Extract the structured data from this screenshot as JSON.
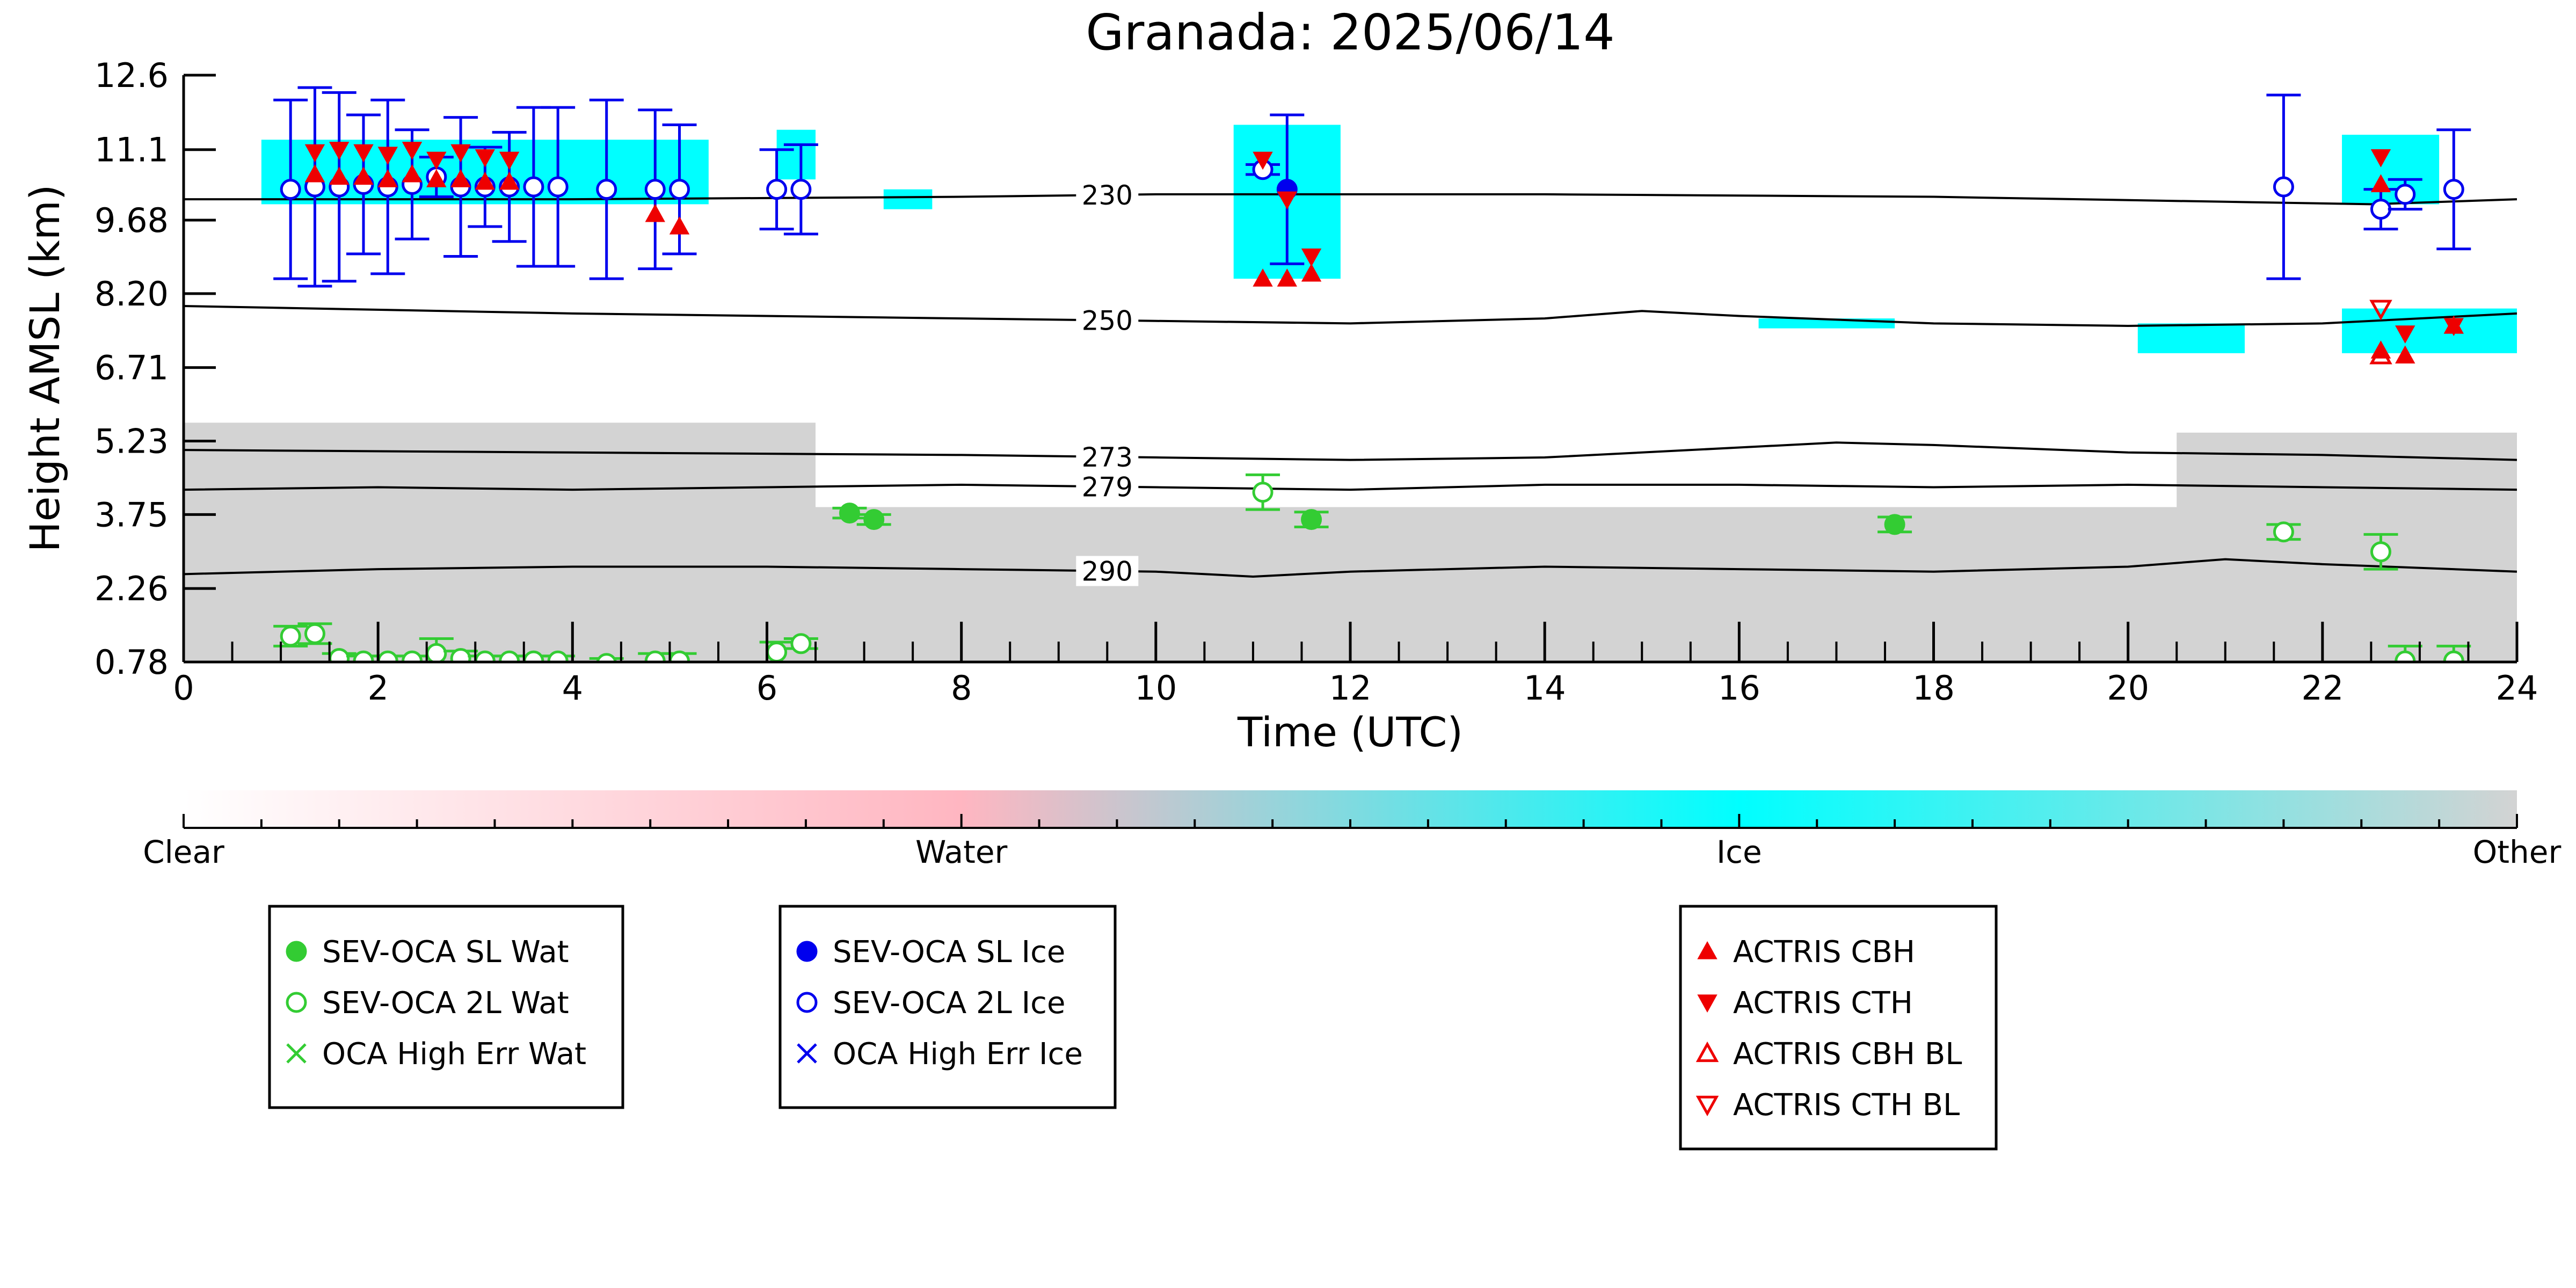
{
  "chart_data": {
    "type": "scatter",
    "title": "Granada: 2025/06/14",
    "xlabel": "Time (UTC)",
    "ylabel": "Height AMSL (km)",
    "xlim": [
      0,
      24
    ],
    "ylim": [
      0.78,
      12.6
    ],
    "x_ticks": [
      "0",
      "2",
      "4",
      "6",
      "8",
      "10",
      "12",
      "14",
      "16",
      "18",
      "20",
      "22",
      "24"
    ],
    "y_ticks": [
      "0.78",
      "2.26",
      "3.75",
      "5.23",
      "6.71",
      "8.20",
      "9.68",
      "11.1",
      "12.6"
    ],
    "grid": false,
    "colorbar": {
      "labels": [
        "Clear",
        "Water",
        "Ice",
        "Other"
      ],
      "colors": [
        "#ffffff",
        "#ffb6c1",
        "#00ffff",
        "#d3d3d3"
      ]
    },
    "background_fields": [
      {
        "name": "Other",
        "color": "#d3d3d3",
        "segments": [
          {
            "x": [
              0,
              24
            ],
            "bottom": 0.78,
            "top": 3.9
          },
          {
            "x": [
              0,
              6.5
            ],
            "bottom": 3.9,
            "top": 5.6
          },
          {
            "x": [
              20.5,
              24
            ],
            "bottom": 3.9,
            "top": 5.4
          }
        ]
      },
      {
        "name": "Ice",
        "color": "#00ffff",
        "segments": [
          {
            "x": [
              0.8,
              5.4
            ],
            "bottom": 10.0,
            "top": 11.3
          },
          {
            "x": [
              6.1,
              6.5
            ],
            "bottom": 10.5,
            "top": 11.5
          },
          {
            "x": [
              7.2,
              7.7
            ],
            "bottom": 9.9,
            "top": 10.3
          },
          {
            "x": [
              10.8,
              11.9
            ],
            "bottom": 8.5,
            "top": 11.6
          },
          {
            "x": [
              16.2,
              17.6
            ],
            "bottom": 7.5,
            "top": 7.7
          },
          {
            "x": [
              20.1,
              21.2
            ],
            "bottom": 7.0,
            "top": 7.6
          },
          {
            "x": [
              22.2,
              24.0
            ],
            "bottom": 7.0,
            "top": 7.9
          },
          {
            "x": [
              22.2,
              23.2
            ],
            "bottom": 10.0,
            "top": 11.4
          }
        ]
      }
    ],
    "contours": [
      {
        "label": "230",
        "label_x": 9.5,
        "x": [
          0,
          4,
          8,
          10,
          14,
          18,
          21,
          22.5,
          24
        ],
        "y": [
          10.1,
          10.1,
          10.15,
          10.2,
          10.2,
          10.15,
          10.05,
          10.0,
          10.1
        ]
      },
      {
        "label": "250",
        "label_x": 9.5,
        "x": [
          0,
          4,
          8,
          10,
          12,
          14,
          15,
          16,
          18,
          20,
          22,
          24
        ],
        "y": [
          7.95,
          7.8,
          7.7,
          7.65,
          7.6,
          7.7,
          7.85,
          7.75,
          7.6,
          7.55,
          7.6,
          7.8
        ]
      },
      {
        "label": "273",
        "label_x": 9.5,
        "x": [
          0,
          4,
          8,
          10,
          12,
          14,
          16,
          17,
          18,
          20,
          22,
          24
        ],
        "y": [
          5.05,
          5.0,
          4.95,
          4.9,
          4.85,
          4.9,
          5.1,
          5.2,
          5.15,
          5.0,
          4.95,
          4.85
        ]
      },
      {
        "label": "279",
        "label_x": 9.5,
        "x": [
          0,
          2,
          4,
          6,
          8,
          10,
          12,
          14,
          16,
          18,
          20,
          22,
          24
        ],
        "y": [
          4.25,
          4.3,
          4.25,
          4.3,
          4.35,
          4.3,
          4.25,
          4.35,
          4.35,
          4.3,
          4.35,
          4.3,
          4.25
        ]
      },
      {
        "label": "290",
        "label_x": 9.5,
        "x": [
          0,
          2,
          4,
          6,
          8,
          10,
          11,
          12,
          14,
          16,
          18,
          20,
          21,
          22,
          24
        ],
        "y": [
          2.55,
          2.65,
          2.7,
          2.7,
          2.65,
          2.6,
          2.5,
          2.6,
          2.7,
          2.65,
          2.6,
          2.7,
          2.85,
          2.75,
          2.6
        ]
      }
    ],
    "series": [
      {
        "name": "SEV-OCA SL Wat",
        "color": "#33cc33",
        "marker": "circle-filled",
        "points": [
          {
            "x": 6.85,
            "y": 3.78,
            "err": 0.1
          },
          {
            "x": 7.1,
            "y": 3.65,
            "err": 0.1
          },
          {
            "x": 11.6,
            "y": 3.65,
            "err": 0.15
          },
          {
            "x": 17.6,
            "y": 3.55,
            "err": 0.15
          }
        ]
      },
      {
        "name": "SEV-OCA 2L Wat",
        "color": "#33cc33",
        "marker": "circle-open",
        "points": [
          {
            "x": 1.1,
            "y": 1.3,
            "err": 0.2
          },
          {
            "x": 1.35,
            "y": 1.35,
            "err": 0.2
          },
          {
            "x": 1.6,
            "y": 0.85,
            "err": 0.1
          },
          {
            "x": 1.85,
            "y": 0.8,
            "err": 0.1
          },
          {
            "x": 2.1,
            "y": 0.8,
            "err": 0.1
          },
          {
            "x": 2.35,
            "y": 0.8,
            "err": 0.1
          },
          {
            "x": 2.6,
            "y": 0.95,
            "err": 0.3
          },
          {
            "x": 2.85,
            "y": 0.85,
            "err": 0.15
          },
          {
            "x": 3.1,
            "y": 0.8,
            "err": 0.1
          },
          {
            "x": 3.35,
            "y": 0.8,
            "err": 0.1
          },
          {
            "x": 3.6,
            "y": 0.8,
            "err": 0.1
          },
          {
            "x": 3.85,
            "y": 0.8,
            "err": 0.1
          },
          {
            "x": 4.35,
            "y": 0.75,
            "err": 0.1
          },
          {
            "x": 4.85,
            "y": 0.8,
            "err": 0.15
          },
          {
            "x": 5.1,
            "y": 0.8,
            "err": 0.15
          },
          {
            "x": 6.1,
            "y": 0.98,
            "err": 0.2
          },
          {
            "x": 6.35,
            "y": 1.15,
            "err": 0.1
          },
          {
            "x": 11.1,
            "y": 4.2,
            "err": 0.35
          },
          {
            "x": 21.6,
            "y": 3.4,
            "err": 0.15
          },
          {
            "x": 22.6,
            "y": 3.0,
            "err": 0.35
          },
          {
            "x": 22.85,
            "y": 0.8,
            "err": 0.3
          },
          {
            "x": 23.35,
            "y": 0.8,
            "err": 0.3
          }
        ]
      },
      {
        "name": "OCA High Err Wat",
        "color": "#33cc33",
        "marker": "x",
        "points": []
      },
      {
        "name": "SEV-OCA SL Ice",
        "color": "#0000ee",
        "marker": "circle-filled",
        "points": [
          {
            "x": 11.35,
            "y": 10.3,
            "err": 1.5
          }
        ]
      },
      {
        "name": "SEV-OCA 2L Ice",
        "color": "#0000ee",
        "marker": "circle-open",
        "points": [
          {
            "x": 1.1,
            "y": 10.3,
            "err": 1.8
          },
          {
            "x": 1.35,
            "y": 10.35,
            "err": 2.0
          },
          {
            "x": 1.6,
            "y": 10.35,
            "err": 1.9
          },
          {
            "x": 1.85,
            "y": 10.4,
            "err": 1.4
          },
          {
            "x": 2.1,
            "y": 10.35,
            "err": 1.75
          },
          {
            "x": 2.35,
            "y": 10.4,
            "err": 1.1
          },
          {
            "x": 2.6,
            "y": 10.55,
            "err": 0.4
          },
          {
            "x": 2.85,
            "y": 10.35,
            "err": 1.4
          },
          {
            "x": 3.1,
            "y": 10.35,
            "err": 0.8
          },
          {
            "x": 3.35,
            "y": 10.35,
            "err": 1.1
          },
          {
            "x": 3.6,
            "y": 10.35,
            "err": 1.6
          },
          {
            "x": 3.85,
            "y": 10.35,
            "err": 1.6
          },
          {
            "x": 4.35,
            "y": 10.3,
            "err": 1.8
          },
          {
            "x": 4.85,
            "y": 10.3,
            "err": 1.6
          },
          {
            "x": 5.1,
            "y": 10.3,
            "err": 1.3
          },
          {
            "x": 6.1,
            "y": 10.3,
            "err": 0.8
          },
          {
            "x": 6.35,
            "y": 10.3,
            "err": 0.9
          },
          {
            "x": 11.1,
            "y": 10.7,
            "err": 0.1
          },
          {
            "x": 21.6,
            "y": 10.35,
            "err": 1.85
          },
          {
            "x": 22.6,
            "y": 9.9,
            "err": 0.4
          },
          {
            "x": 22.85,
            "y": 10.2,
            "err": 0.3
          },
          {
            "x": 23.35,
            "y": 10.3,
            "err": 1.2
          }
        ]
      },
      {
        "name": "OCA High Err Ice",
        "color": "#0000ee",
        "marker": "x",
        "points": []
      },
      {
        "name": "ACTRIS CBH",
        "color": "#ee0000",
        "marker": "triangle-up-filled",
        "points": [
          {
            "x": 1.35,
            "y": 10.6
          },
          {
            "x": 1.6,
            "y": 10.55
          },
          {
            "x": 1.85,
            "y": 10.55
          },
          {
            "x": 2.1,
            "y": 10.5
          },
          {
            "x": 2.35,
            "y": 10.6
          },
          {
            "x": 2.6,
            "y": 10.5
          },
          {
            "x": 2.85,
            "y": 10.5
          },
          {
            "x": 3.1,
            "y": 10.45
          },
          {
            "x": 3.35,
            "y": 10.45
          },
          {
            "x": 4.85,
            "y": 9.8
          },
          {
            "x": 5.1,
            "y": 9.55
          },
          {
            "x": 11.1,
            "y": 8.5
          },
          {
            "x": 11.35,
            "y": 8.5
          },
          {
            "x": 11.6,
            "y": 8.6
          },
          {
            "x": 22.6,
            "y": 10.4
          },
          {
            "x": 22.6,
            "y": 7.05
          },
          {
            "x": 22.85,
            "y": 6.95
          },
          {
            "x": 23.35,
            "y": 7.55
          }
        ]
      },
      {
        "name": "ACTRIS CTH",
        "color": "#ee0000",
        "marker": "triangle-down-filled",
        "points": [
          {
            "x": 1.35,
            "y": 11.05
          },
          {
            "x": 1.6,
            "y": 11.1
          },
          {
            "x": 1.85,
            "y": 11.05
          },
          {
            "x": 2.1,
            "y": 11.0
          },
          {
            "x": 2.35,
            "y": 11.1
          },
          {
            "x": 2.6,
            "y": 10.9
          },
          {
            "x": 2.85,
            "y": 11.05
          },
          {
            "x": 3.1,
            "y": 10.95
          },
          {
            "x": 3.35,
            "y": 10.9
          },
          {
            "x": 11.1,
            "y": 10.9
          },
          {
            "x": 11.35,
            "y": 10.1
          },
          {
            "x": 11.6,
            "y": 8.95
          },
          {
            "x": 22.6,
            "y": 10.95
          },
          {
            "x": 22.85,
            "y": 7.4
          },
          {
            "x": 23.35,
            "y": 7.55
          }
        ]
      },
      {
        "name": "ACTRIS CBH BL",
        "color": "#ee0000",
        "marker": "triangle-up-open",
        "points": [
          {
            "x": 22.6,
            "y": 6.95
          }
        ]
      },
      {
        "name": "ACTRIS CTH BL",
        "color": "#ee0000",
        "marker": "triangle-down-open",
        "points": [
          {
            "x": 22.6,
            "y": 7.9
          }
        ]
      }
    ],
    "legends": [
      [
        "SEV-OCA SL Wat",
        "SEV-OCA 2L Wat",
        "OCA High Err Wat"
      ],
      [
        "SEV-OCA SL Ice",
        "SEV-OCA 2L Ice",
        "OCA High Err Ice"
      ],
      [
        "ACTRIS CBH",
        "ACTRIS CTH",
        "ACTRIS CBH BL",
        "ACTRIS CTH BL"
      ]
    ]
  }
}
